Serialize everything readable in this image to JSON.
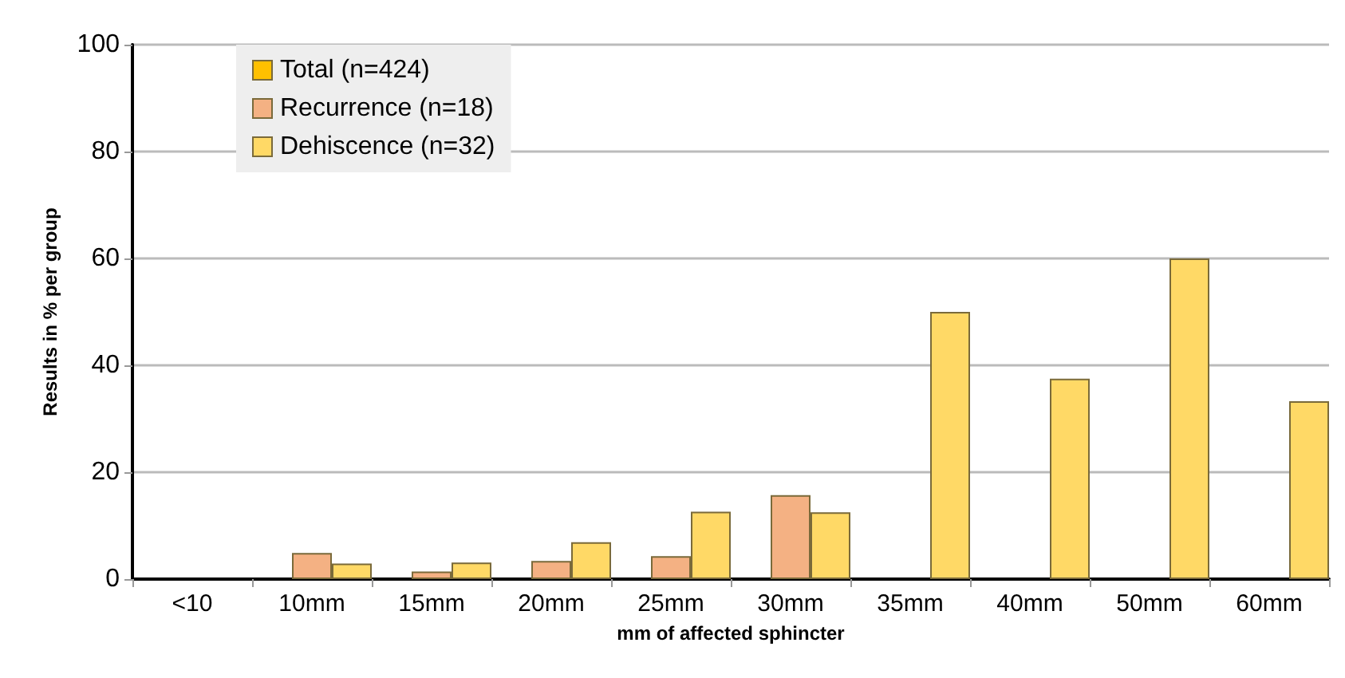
{
  "chart_data": {
    "type": "bar",
    "xlabel": "mm of affected sphincter",
    "ylabel": "Results in % per group",
    "categories": [
      "<10",
      "10mm",
      "15mm",
      "20mm",
      "25mm",
      "30mm",
      "35mm",
      "40mm",
      "50mm",
      "60mm"
    ],
    "series": [
      {
        "name": "Total (n=424)",
        "color": "#ffc000",
        "values": [
          0,
          0,
          0,
          0,
          0,
          0,
          0,
          0,
          0,
          0
        ]
      },
      {
        "name": "Recurrence (n=18)",
        "color": "#f4b183",
        "values": [
          0,
          4.9,
          1.4,
          3.4,
          4.3,
          15.7,
          0,
          0,
          0,
          0
        ]
      },
      {
        "name": "Dehiscence (n=32)",
        "color": "#ffd966",
        "values": [
          0,
          2.9,
          3.1,
          6.9,
          12.6,
          12.5,
          50,
          37.5,
          60,
          33.3
        ]
      }
    ],
    "ylim": [
      0,
      100
    ],
    "yticks": [
      0,
      20,
      40,
      60,
      80,
      100
    ],
    "grid": "y",
    "legend": "top left"
  }
}
